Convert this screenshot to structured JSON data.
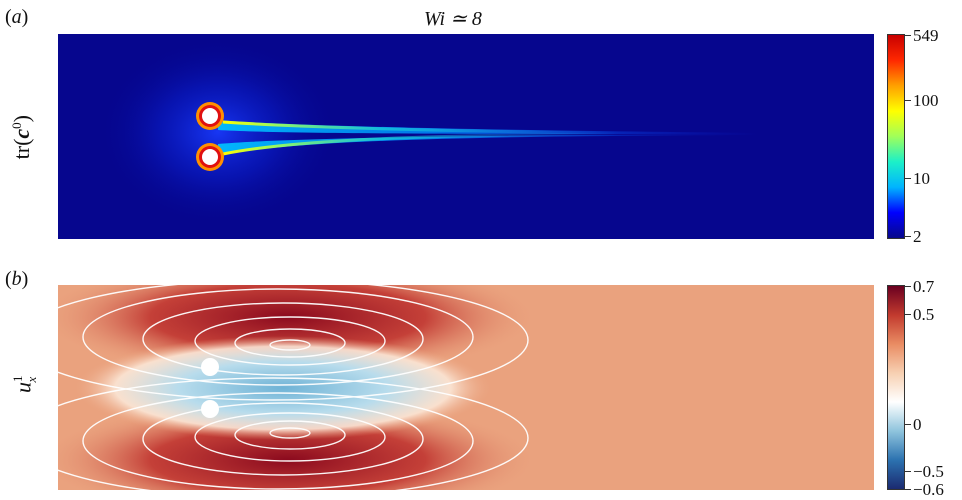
{
  "figure": {
    "title": "Wi ≃ 8",
    "panel_a": {
      "label": "a",
      "ylabel_tr": "tr(",
      "ylabel_c": "c",
      "ylabel_sup": "0",
      "ylabel_close": ")",
      "colorbar": {
        "scale": "log",
        "ticks": [
          "549",
          "100",
          "10",
          "2"
        ],
        "colors": [
          "#08088a",
          "#0000ff",
          "#00b4ff",
          "#1cf0c8",
          "#a0ff5a",
          "#ffff00",
          "#ffa000",
          "#ff2800",
          "#c80000"
        ]
      }
    },
    "panel_b": {
      "label": "b",
      "ylabel_base": "u",
      "ylabel_sup": "1",
      "ylabel_sub": "x",
      "colorbar": {
        "scale": "linear",
        "ticks": [
          "0.7",
          "0.5",
          "0",
          "−0.5",
          "−0.6"
        ],
        "colors": [
          "#1b2a70",
          "#2c72b0",
          "#8fc4dd",
          "#ffffff",
          "#f7d0b2",
          "#e98c63",
          "#c23a2e",
          "#6a0020"
        ]
      }
    }
  }
}
